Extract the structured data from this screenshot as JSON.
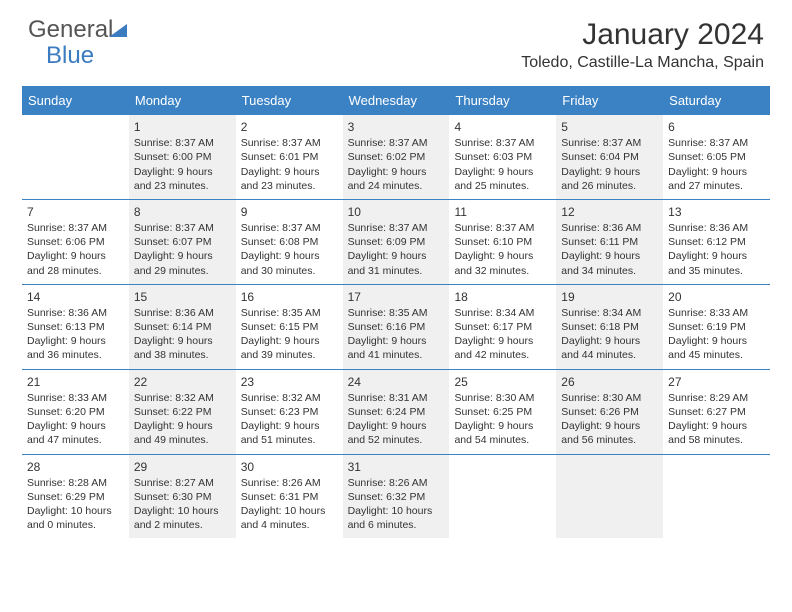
{
  "logo": {
    "text1": "General",
    "text2": "Blue"
  },
  "title": {
    "month": "January 2024",
    "location": "Toledo, Castille-La Mancha, Spain"
  },
  "colors": {
    "header_bg": "#3b82c4",
    "alt_bg": "#f0f0f0",
    "text": "#333333"
  },
  "weekdays": [
    "Sunday",
    "Monday",
    "Tuesday",
    "Wednesday",
    "Thursday",
    "Friday",
    "Saturday"
  ],
  "weeks": [
    [
      {
        "empty": true
      },
      {
        "day": "1",
        "sunrise": "Sunrise: 8:37 AM",
        "sunset": "Sunset: 6:00 PM",
        "daylight": "Daylight: 9 hours and 23 minutes."
      },
      {
        "day": "2",
        "sunrise": "Sunrise: 8:37 AM",
        "sunset": "Sunset: 6:01 PM",
        "daylight": "Daylight: 9 hours and 23 minutes."
      },
      {
        "day": "3",
        "sunrise": "Sunrise: 8:37 AM",
        "sunset": "Sunset: 6:02 PM",
        "daylight": "Daylight: 9 hours and 24 minutes."
      },
      {
        "day": "4",
        "sunrise": "Sunrise: 8:37 AM",
        "sunset": "Sunset: 6:03 PM",
        "daylight": "Daylight: 9 hours and 25 minutes."
      },
      {
        "day": "5",
        "sunrise": "Sunrise: 8:37 AM",
        "sunset": "Sunset: 6:04 PM",
        "daylight": "Daylight: 9 hours and 26 minutes."
      },
      {
        "day": "6",
        "sunrise": "Sunrise: 8:37 AM",
        "sunset": "Sunset: 6:05 PM",
        "daylight": "Daylight: 9 hours and 27 minutes."
      }
    ],
    [
      {
        "day": "7",
        "sunrise": "Sunrise: 8:37 AM",
        "sunset": "Sunset: 6:06 PM",
        "daylight": "Daylight: 9 hours and 28 minutes."
      },
      {
        "day": "8",
        "sunrise": "Sunrise: 8:37 AM",
        "sunset": "Sunset: 6:07 PM",
        "daylight": "Daylight: 9 hours and 29 minutes."
      },
      {
        "day": "9",
        "sunrise": "Sunrise: 8:37 AM",
        "sunset": "Sunset: 6:08 PM",
        "daylight": "Daylight: 9 hours and 30 minutes."
      },
      {
        "day": "10",
        "sunrise": "Sunrise: 8:37 AM",
        "sunset": "Sunset: 6:09 PM",
        "daylight": "Daylight: 9 hours and 31 minutes."
      },
      {
        "day": "11",
        "sunrise": "Sunrise: 8:37 AM",
        "sunset": "Sunset: 6:10 PM",
        "daylight": "Daylight: 9 hours and 32 minutes."
      },
      {
        "day": "12",
        "sunrise": "Sunrise: 8:36 AM",
        "sunset": "Sunset: 6:11 PM",
        "daylight": "Daylight: 9 hours and 34 minutes."
      },
      {
        "day": "13",
        "sunrise": "Sunrise: 8:36 AM",
        "sunset": "Sunset: 6:12 PM",
        "daylight": "Daylight: 9 hours and 35 minutes."
      }
    ],
    [
      {
        "day": "14",
        "sunrise": "Sunrise: 8:36 AM",
        "sunset": "Sunset: 6:13 PM",
        "daylight": "Daylight: 9 hours and 36 minutes."
      },
      {
        "day": "15",
        "sunrise": "Sunrise: 8:36 AM",
        "sunset": "Sunset: 6:14 PM",
        "daylight": "Daylight: 9 hours and 38 minutes."
      },
      {
        "day": "16",
        "sunrise": "Sunrise: 8:35 AM",
        "sunset": "Sunset: 6:15 PM",
        "daylight": "Daylight: 9 hours and 39 minutes."
      },
      {
        "day": "17",
        "sunrise": "Sunrise: 8:35 AM",
        "sunset": "Sunset: 6:16 PM",
        "daylight": "Daylight: 9 hours and 41 minutes."
      },
      {
        "day": "18",
        "sunrise": "Sunrise: 8:34 AM",
        "sunset": "Sunset: 6:17 PM",
        "daylight": "Daylight: 9 hours and 42 minutes."
      },
      {
        "day": "19",
        "sunrise": "Sunrise: 8:34 AM",
        "sunset": "Sunset: 6:18 PM",
        "daylight": "Daylight: 9 hours and 44 minutes."
      },
      {
        "day": "20",
        "sunrise": "Sunrise: 8:33 AM",
        "sunset": "Sunset: 6:19 PM",
        "daylight": "Daylight: 9 hours and 45 minutes."
      }
    ],
    [
      {
        "day": "21",
        "sunrise": "Sunrise: 8:33 AM",
        "sunset": "Sunset: 6:20 PM",
        "daylight": "Daylight: 9 hours and 47 minutes."
      },
      {
        "day": "22",
        "sunrise": "Sunrise: 8:32 AM",
        "sunset": "Sunset: 6:22 PM",
        "daylight": "Daylight: 9 hours and 49 minutes."
      },
      {
        "day": "23",
        "sunrise": "Sunrise: 8:32 AM",
        "sunset": "Sunset: 6:23 PM",
        "daylight": "Daylight: 9 hours and 51 minutes."
      },
      {
        "day": "24",
        "sunrise": "Sunrise: 8:31 AM",
        "sunset": "Sunset: 6:24 PM",
        "daylight": "Daylight: 9 hours and 52 minutes."
      },
      {
        "day": "25",
        "sunrise": "Sunrise: 8:30 AM",
        "sunset": "Sunset: 6:25 PM",
        "daylight": "Daylight: 9 hours and 54 minutes."
      },
      {
        "day": "26",
        "sunrise": "Sunrise: 8:30 AM",
        "sunset": "Sunset: 6:26 PM",
        "daylight": "Daylight: 9 hours and 56 minutes."
      },
      {
        "day": "27",
        "sunrise": "Sunrise: 8:29 AM",
        "sunset": "Sunset: 6:27 PM",
        "daylight": "Daylight: 9 hours and 58 minutes."
      }
    ],
    [
      {
        "day": "28",
        "sunrise": "Sunrise: 8:28 AM",
        "sunset": "Sunset: 6:29 PM",
        "daylight": "Daylight: 10 hours and 0 minutes."
      },
      {
        "day": "29",
        "sunrise": "Sunrise: 8:27 AM",
        "sunset": "Sunset: 6:30 PM",
        "daylight": "Daylight: 10 hours and 2 minutes."
      },
      {
        "day": "30",
        "sunrise": "Sunrise: 8:26 AM",
        "sunset": "Sunset: 6:31 PM",
        "daylight": "Daylight: 10 hours and 4 minutes."
      },
      {
        "day": "31",
        "sunrise": "Sunrise: 8:26 AM",
        "sunset": "Sunset: 6:32 PM",
        "daylight": "Daylight: 10 hours and 6 minutes."
      },
      {
        "empty": true
      },
      {
        "empty": true
      },
      {
        "empty": true
      }
    ]
  ]
}
